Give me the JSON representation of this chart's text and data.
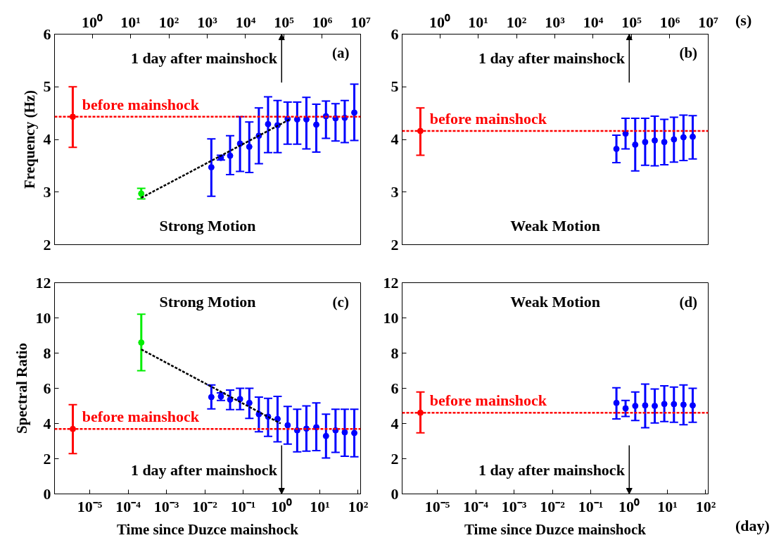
{
  "chart_data": [
    {
      "type": "scatter",
      "title": "Strong Motion",
      "subtitle": "(a)",
      "ylabel": "Frequency (Hz)",
      "log": "x",
      "xlim": [
        0.104,
        10020000
      ],
      "ylim": [
        2,
        6
      ],
      "xticks": [
        {
          "value": 1,
          "label": "10⁰"
        },
        {
          "value": 10,
          "label": "10¹"
        },
        {
          "value": 100,
          "label": "10²"
        },
        {
          "value": 1000,
          "label": "10³"
        },
        {
          "value": 10000,
          "label": "10⁴"
        },
        {
          "value": 100000,
          "label": "10⁵"
        },
        {
          "value": 1000000,
          "label": "10⁶"
        },
        {
          "value": 10000000,
          "label": "10⁷"
        }
      ],
      "yticks": [
        2,
        3,
        4,
        5,
        6
      ],
      "ref_lines": [
        {
          "axis": "y",
          "value": 4.43,
          "label": "before mainshock",
          "color": "#ff0000",
          "line_style": "dashed"
        }
      ],
      "annotations": [
        "1 day after mainshock"
      ],
      "series": [
        {
          "type": "line",
          "color": "#000000",
          "line_style": "dashed",
          "marker": "none",
          "x": [
            19,
            150000
          ],
          "values": [
            2.89,
            4.39
          ]
        },
        {
          "color": "#ff0000",
          "marker": "circle",
          "x": [
            0.311
          ],
          "values": [
            4.43
          ],
          "errors": [
            [
              3.85,
              5.0
            ]
          ]
        },
        {
          "color": "#00ee00",
          "marker": "circle",
          "x": [
            19
          ],
          "values": [
            2.97
          ],
          "errors": [
            [
              2.87,
              3.07
            ]
          ]
        },
        {
          "color": "#0000ff",
          "marker": "circle",
          "x": [
            1280,
            2270,
            3950,
            7170,
            12500,
            22200,
            38600,
            68300,
            125000,
            222000,
            386000,
            700000,
            1250000,
            2220000,
            3860000,
            6860000
          ],
          "values": [
            3.47,
            3.65,
            3.69,
            3.92,
            3.86,
            4.07,
            4.29,
            4.27,
            4.39,
            4.38,
            4.38,
            4.28,
            4.44,
            4.4,
            4.41,
            4.51
          ],
          "errors": [
            [
              2.92,
              4.01
            ],
            [
              3.61,
              3.7
            ],
            [
              3.33,
              4.07
            ],
            [
              3.39,
              4.43
            ],
            [
              3.37,
              4.33
            ],
            [
              3.54,
              4.6
            ],
            [
              3.75,
              4.81
            ],
            [
              3.75,
              4.74
            ],
            [
              3.91,
              4.71
            ],
            [
              3.91,
              4.71
            ],
            [
              3.82,
              4.8
            ],
            [
              3.76,
              4.67
            ],
            [
              4.02,
              4.73
            ],
            [
              3.97,
              4.68
            ],
            [
              3.94,
              4.74
            ],
            [
              3.98,
              5.05
            ]
          ]
        }
      ]
    },
    {
      "type": "scatter",
      "title": "Weak Motion",
      "subtitle": "(b)",
      "xlabel": "(s)",
      "log": "x",
      "xlim": [
        0.104,
        10020000
      ],
      "ylim": [
        2,
        6
      ],
      "xticks": [
        {
          "value": 1,
          "label": "10⁰"
        },
        {
          "value": 10,
          "label": "10¹"
        },
        {
          "value": 100,
          "label": "10²"
        },
        {
          "value": 1000,
          "label": "10³"
        },
        {
          "value": 10000,
          "label": "10⁴"
        },
        {
          "value": 100000,
          "label": "10⁵"
        },
        {
          "value": 1000000,
          "label": "10⁶"
        },
        {
          "value": 10000000,
          "label": "10⁷"
        }
      ],
      "yticks": [
        2,
        3,
        4,
        5,
        6
      ],
      "ref_lines": [
        {
          "axis": "y",
          "value": 4.16,
          "label": "before mainshock",
          "color": "#ff0000",
          "line_style": "dashed"
        }
      ],
      "annotations": [
        "1 day after mainshock"
      ],
      "series": [
        {
          "color": "#ff0000",
          "marker": "circle",
          "x": [
            0.311
          ],
          "values": [
            4.16
          ],
          "errors": [
            [
              3.7,
              4.6
            ]
          ]
        },
        {
          "color": "#0000ff",
          "marker": "circle",
          "x": [
            40400,
            70000,
            125000,
            227000,
            404000,
            717000,
            1280000,
            2270000,
            3950000
          ],
          "values": [
            3.82,
            4.11,
            3.9,
            3.95,
            3.98,
            3.95,
            4.0,
            4.04,
            4.05
          ],
          "errors": [
            [
              3.56,
              4.08
            ],
            [
              3.82,
              4.4
            ],
            [
              3.4,
              4.4
            ],
            [
              3.51,
              4.4
            ],
            [
              3.5,
              4.44
            ],
            [
              3.52,
              4.38
            ],
            [
              3.57,
              4.42
            ],
            [
              3.6,
              4.46
            ],
            [
              3.63,
              4.45
            ]
          ]
        }
      ]
    },
    {
      "type": "scatter",
      "title": "Strong Motion",
      "subtitle": "(c)",
      "ylabel": "Spectral Ratio",
      "xlabel": "Time since Duzce mainshock",
      "log": "x",
      "xlim": [
        1.2e-06,
        116
      ],
      "ylim": [
        0,
        12
      ],
      "xticks": [
        {
          "value": 1e-05,
          "label": "10⁻⁵"
        },
        {
          "value": 0.0001,
          "label": "10⁻⁴"
        },
        {
          "value": 0.001,
          "label": "10⁻³"
        },
        {
          "value": 0.01,
          "label": "10⁻²"
        },
        {
          "value": 0.1,
          "label": "10⁻¹"
        },
        {
          "value": 1,
          "label": "10⁰"
        },
        {
          "value": 10,
          "label": "10¹"
        },
        {
          "value": 100,
          "label": "10²"
        }
      ],
      "yticks": [
        0,
        2,
        4,
        6,
        8,
        10,
        12
      ],
      "ref_lines": [
        {
          "axis": "y",
          "value": 3.69,
          "label": "before mainshock",
          "color": "#ff0000",
          "line_style": "dashed"
        }
      ],
      "annotations": [
        "1 day after mainshock"
      ],
      "series": [
        {
          "type": "line",
          "color": "#000000",
          "line_style": "dashed",
          "marker": "none",
          "x": [
            0.00022,
            0.95
          ],
          "values": [
            8.21,
            4.0
          ]
        },
        {
          "color": "#ff0000",
          "marker": "circle",
          "x": [
            3.6e-06
          ],
          "values": [
            3.69
          ],
          "errors": [
            [
              2.29,
              5.07
            ]
          ]
        },
        {
          "color": "#00ee00",
          "marker": "circle",
          "x": [
            0.00022
          ],
          "values": [
            8.6
          ],
          "errors": [
            [
              7.0,
              10.21
            ]
          ]
        },
        {
          "color": "#0000ff",
          "marker": "circle",
          "x": [
            0.0148,
            0.0263,
            0.0457,
            0.083,
            0.145,
            0.257,
            0.447,
            0.79,
            1.45,
            2.57,
            4.47,
            8.1,
            14.5,
            25.7,
            44.7,
            79.4
          ],
          "values": [
            5.5,
            5.54,
            5.36,
            5.39,
            5.17,
            4.53,
            4.39,
            4.26,
            3.9,
            3.61,
            3.71,
            3.79,
            3.29,
            3.61,
            3.5,
            3.46
          ],
          "errors": [
            [
              4.83,
              6.19
            ],
            [
              5.31,
              5.74
            ],
            [
              4.79,
              5.9
            ],
            [
              4.79,
              6.0
            ],
            [
              4.29,
              6.0
            ],
            [
              3.53,
              5.5
            ],
            [
              3.27,
              5.43
            ],
            [
              2.96,
              5.54
            ],
            [
              2.83,
              4.97
            ],
            [
              2.39,
              4.81
            ],
            [
              2.43,
              5.0
            ],
            [
              2.46,
              5.17
            ],
            [
              2.04,
              4.53
            ],
            [
              2.36,
              4.81
            ],
            [
              2.14,
              4.81
            ],
            [
              2.11,
              4.81
            ]
          ]
        }
      ]
    },
    {
      "type": "scatter",
      "title": "Weak Motion",
      "subtitle": "(d)",
      "xlabel": "Time since Duzce mainshock",
      "log": "x",
      "xlim": [
        1.2e-06,
        116
      ],
      "ylim": [
        0,
        12
      ],
      "xticks": [
        {
          "value": 1e-05,
          "label": "10⁻⁵"
        },
        {
          "value": 0.0001,
          "label": "10⁻⁴"
        },
        {
          "value": 0.001,
          "label": "10⁻³"
        },
        {
          "value": 0.01,
          "label": "10⁻²"
        },
        {
          "value": 0.1,
          "label": "10⁻¹"
        },
        {
          "value": 1,
          "label": "10⁰"
        },
        {
          "value": 10,
          "label": "10¹"
        },
        {
          "value": 100,
          "label": "10²"
        }
      ],
      "yticks": [
        0,
        2,
        4,
        6,
        8,
        10,
        12
      ],
      "ref_lines": [
        {
          "axis": "y",
          "value": 4.61,
          "label": "before mainshock",
          "color": "#ff0000",
          "line_style": "dashed"
        }
      ],
      "annotations": [
        "1 day after mainshock",
        "(day)"
      ],
      "series": [
        {
          "color": "#ff0000",
          "marker": "circle",
          "x": [
            3.6e-06
          ],
          "values": [
            4.61
          ],
          "errors": [
            [
              3.47,
              5.79
            ]
          ]
        },
        {
          "color": "#0000ff",
          "marker": "circle",
          "x": [
            0.468,
            0.81,
            1.45,
            2.63,
            4.68,
            8.3,
            14.8,
            26.3,
            45.7
          ],
          "values": [
            5.17,
            4.86,
            5.0,
            5.03,
            5.0,
            5.11,
            5.1,
            5.07,
            5.03
          ],
          "errors": [
            [
              4.26,
              6.03
            ],
            [
              4.4,
              5.31
            ],
            [
              4.17,
              5.79
            ],
            [
              3.76,
              6.24
            ],
            [
              4.03,
              5.96
            ],
            [
              4.11,
              6.14
            ],
            [
              4.07,
              6.07
            ],
            [
              3.93,
              6.19
            ],
            [
              4.07,
              6.0
            ]
          ]
        }
      ]
    }
  ]
}
